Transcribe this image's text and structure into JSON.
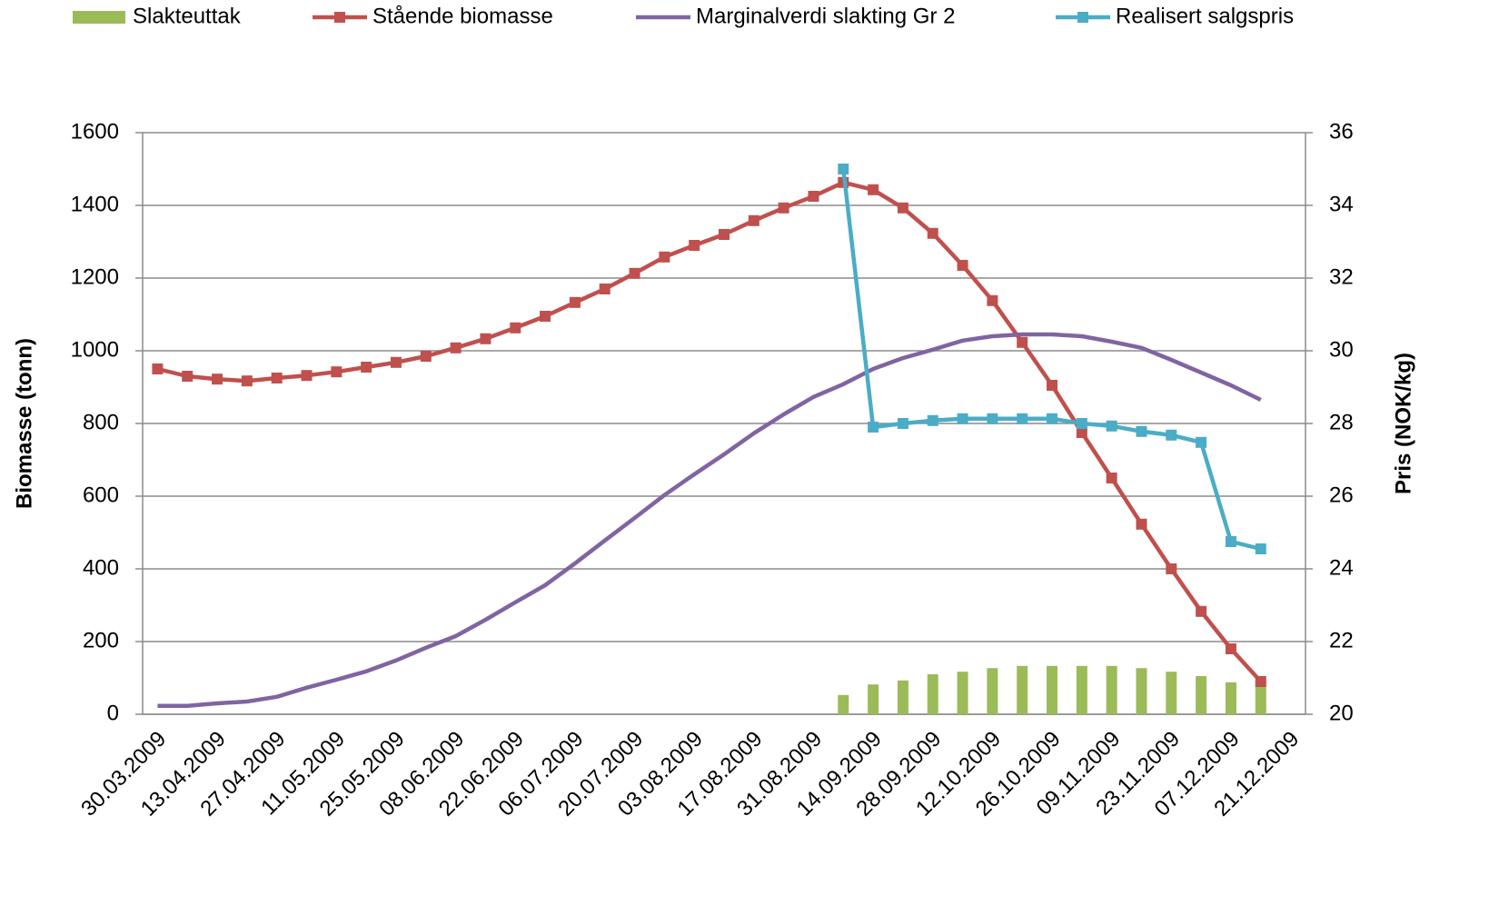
{
  "chart_data": {
    "type": "combo",
    "categories": [
      "30.03.2009",
      null,
      "13.04.2009",
      null,
      "27.04.2009",
      null,
      "11.05.2009",
      null,
      "25.05.2009",
      null,
      "08.06.2009",
      null,
      "22.06.2009",
      null,
      "06.07.2009",
      null,
      "20.07.2009",
      null,
      "03.08.2009",
      null,
      "17.08.2009",
      null,
      "31.08.2009",
      null,
      "14.09.2009",
      null,
      "28.09.2009",
      null,
      "12.10.2009",
      null,
      "26.10.2009",
      null,
      "09.11.2009",
      null,
      "23.11.2009",
      null,
      "07.12.2009",
      null,
      "21.12.2009"
    ],
    "ylabel": "Biomasse  (tonn)",
    "y2label": "Pris (NOK/kg)",
    "ylim": [
      0,
      1600
    ],
    "yticks": [
      0,
      200,
      400,
      600,
      800,
      1000,
      1200,
      1400,
      1600
    ],
    "y2lim": [
      20,
      36
    ],
    "y2ticks": [
      20,
      22,
      24,
      26,
      28,
      30,
      32,
      34,
      36
    ],
    "grid": true,
    "legend": "top",
    "series": [
      {
        "name": "Slakteuttak",
        "type": "bar",
        "color": "#9bbb59",
        "values": [
          null,
          null,
          null,
          null,
          null,
          null,
          null,
          null,
          null,
          null,
          null,
          null,
          null,
          null,
          null,
          null,
          null,
          null,
          null,
          null,
          null,
          null,
          null,
          53,
          82,
          93,
          110,
          117,
          127,
          133,
          133,
          133,
          133,
          127,
          117,
          105,
          88,
          95,
          null
        ]
      },
      {
        "name": "Stående biomasse",
        "type": "line",
        "marker": "square",
        "color": "#c0504d",
        "values": [
          950,
          930,
          922,
          917,
          925,
          932,
          942,
          955,
          968,
          985,
          1008,
          1033,
          1063,
          1095,
          1133,
          1170,
          1213,
          1258,
          1290,
          1320,
          1358,
          1393,
          1425,
          1463,
          1443,
          1393,
          1323,
          1235,
          1138,
          1023,
          905,
          775,
          650,
          523,
          400,
          283,
          180,
          90,
          null
        ]
      },
      {
        "name": "Marginalverdi slakting Gr 2",
        "type": "line",
        "color": "#8064a2",
        "axis": "y2",
        "values": [
          20.23,
          20.23,
          20.3,
          20.35,
          20.48,
          20.73,
          20.95,
          21.18,
          21.48,
          21.83,
          22.15,
          22.6,
          23.08,
          23.55,
          24.15,
          24.78,
          25.4,
          26.03,
          26.6,
          27.15,
          27.73,
          28.25,
          28.73,
          29.08,
          29.5,
          29.8,
          30.03,
          30.28,
          30.4,
          30.45,
          30.45,
          30.4,
          30.25,
          30.08,
          29.75,
          29.4,
          29.05,
          28.65,
          null
        ]
      },
      {
        "name": "Realisert salgspris",
        "type": "line",
        "marker": "square",
        "color": "#4bacc6",
        "axis": "y2",
        "values": [
          null,
          null,
          null,
          null,
          null,
          null,
          null,
          null,
          null,
          null,
          null,
          null,
          null,
          null,
          null,
          null,
          null,
          null,
          null,
          null,
          null,
          null,
          null,
          35.0,
          27.9,
          28.0,
          28.08,
          28.13,
          28.13,
          28.13,
          28.13,
          28.0,
          27.93,
          27.78,
          27.68,
          27.48,
          24.75,
          24.55,
          null
        ]
      }
    ]
  }
}
